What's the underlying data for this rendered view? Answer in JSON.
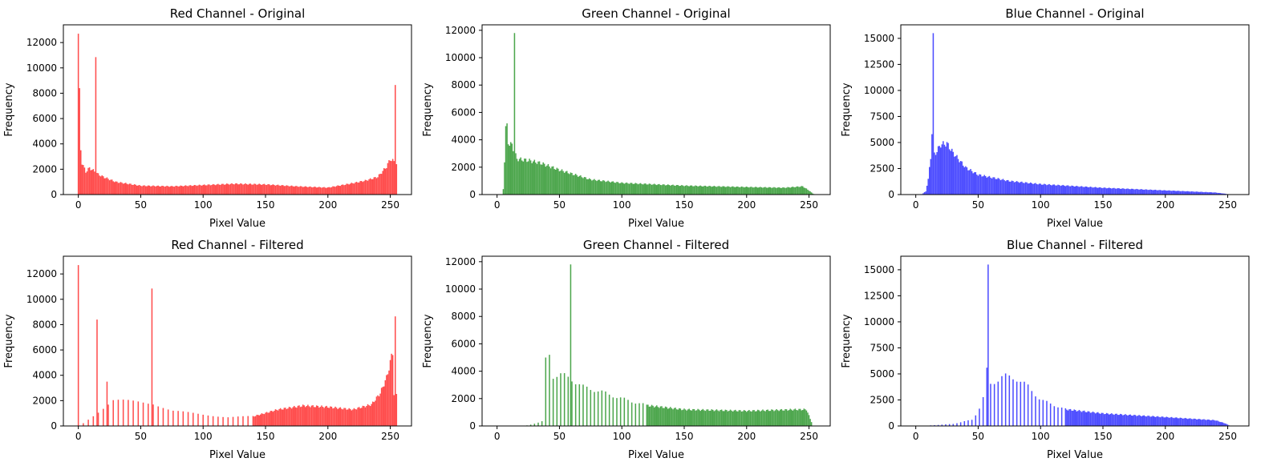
{
  "chart_data": [
    {
      "type": "bar",
      "title": "Red Channel - Original",
      "xlabel": "Pixel Value",
      "ylabel": "Frequency",
      "color": "#ff0000",
      "xlim": [
        -12,
        267
      ],
      "ylim": [
        0,
        13400
      ],
      "xticks": [
        0,
        50,
        100,
        150,
        200,
        250
      ],
      "yticks": [
        0,
        2000,
        4000,
        6000,
        8000,
        10000,
        12000
      ],
      "spikes": [
        [
          0,
          12700
        ],
        [
          1,
          8400
        ],
        [
          2,
          3500
        ],
        [
          14,
          10850
        ],
        [
          254,
          8650
        ],
        [
          255,
          2400
        ]
      ],
      "profile": [
        [
          0,
          2000
        ],
        [
          3,
          2500
        ],
        [
          6,
          1800
        ],
        [
          9,
          2100
        ],
        [
          12,
          1900
        ],
        [
          16,
          1600
        ],
        [
          20,
          1400
        ],
        [
          30,
          1000
        ],
        [
          50,
          700
        ],
        [
          75,
          650
        ],
        [
          100,
          750
        ],
        [
          125,
          850
        ],
        [
          150,
          800
        ],
        [
          175,
          650
        ],
        [
          200,
          550
        ],
        [
          220,
          900
        ],
        [
          230,
          1100
        ],
        [
          240,
          1400
        ],
        [
          247,
          2200
        ],
        [
          250,
          2800
        ],
        [
          253,
          2600
        ]
      ]
    },
    {
      "type": "bar",
      "title": "Green Channel - Original",
      "xlabel": "Pixel Value",
      "ylabel": "Frequency",
      "color": "#008000",
      "xlim": [
        -12,
        267
      ],
      "ylim": [
        0,
        12400
      ],
      "xticks": [
        0,
        50,
        100,
        150,
        200,
        250
      ],
      "yticks": [
        0,
        2000,
        4000,
        6000,
        8000,
        10000,
        12000
      ],
      "spikes": [
        [
          7,
          5000
        ],
        [
          8,
          5200
        ],
        [
          14,
          11800
        ]
      ],
      "profile": [
        [
          0,
          0
        ],
        [
          4,
          0
        ],
        [
          5,
          400
        ],
        [
          6,
          2500
        ],
        [
          7,
          4800
        ],
        [
          9,
          3800
        ],
        [
          12,
          3600
        ],
        [
          16,
          2600
        ],
        [
          25,
          2500
        ],
        [
          35,
          2300
        ],
        [
          50,
          1800
        ],
        [
          75,
          1100
        ],
        [
          100,
          850
        ],
        [
          150,
          650
        ],
        [
          200,
          550
        ],
        [
          230,
          500
        ],
        [
          245,
          600
        ],
        [
          250,
          300
        ],
        [
          253,
          80
        ],
        [
          255,
          0
        ]
      ]
    },
    {
      "type": "bar",
      "title": "Blue Channel - Original",
      "xlabel": "Pixel Value",
      "ylabel": "Frequency",
      "color": "#0000ff",
      "xlim": [
        -12,
        267
      ],
      "ylim": [
        0,
        16300
      ],
      "xticks": [
        0,
        50,
        100,
        150,
        200,
        250
      ],
      "yticks": [
        0,
        2500,
        5000,
        7500,
        10000,
        12500,
        15000
      ],
      "spikes": [
        [
          14,
          15500
        ],
        [
          13,
          5800
        ]
      ],
      "profile": [
        [
          0,
          0
        ],
        [
          5,
          50
        ],
        [
          8,
          300
        ],
        [
          10,
          1500
        ],
        [
          12,
          3500
        ],
        [
          16,
          4000
        ],
        [
          20,
          4800
        ],
        [
          25,
          4900
        ],
        [
          30,
          4000
        ],
        [
          40,
          2600
        ],
        [
          50,
          1900
        ],
        [
          75,
          1300
        ],
        [
          100,
          1000
        ],
        [
          150,
          650
        ],
        [
          200,
          400
        ],
        [
          240,
          200
        ],
        [
          248,
          80
        ],
        [
          252,
          0
        ],
        [
          255,
          0
        ]
      ]
    },
    {
      "type": "bar",
      "title": "Red Channel - Filtered",
      "xlabel": "Pixel Value",
      "ylabel": "Frequency",
      "color": "#ff0000",
      "xlim": [
        -12,
        267
      ],
      "ylim": [
        0,
        13400
      ],
      "xticks": [
        0,
        50,
        100,
        150,
        200,
        250
      ],
      "yticks": [
        0,
        2000,
        4000,
        6000,
        8000,
        10000,
        12000
      ],
      "sparse_below": 140,
      "sparse_step": 4,
      "spikes": [
        [
          0,
          12700
        ],
        [
          15,
          8400
        ],
        [
          23,
          3500
        ],
        [
          59,
          10850
        ],
        [
          254,
          8650
        ],
        [
          252,
          5600
        ],
        [
          251,
          5700
        ]
      ],
      "profile": [
        [
          0,
          0
        ],
        [
          1,
          0
        ],
        [
          28,
          2000
        ],
        [
          50,
          1900
        ],
        [
          60,
          1800
        ],
        [
          75,
          1200
        ],
        [
          100,
          900
        ],
        [
          120,
          700
        ],
        [
          140,
          750
        ],
        [
          160,
          1300
        ],
        [
          180,
          1600
        ],
        [
          200,
          1500
        ],
        [
          220,
          1300
        ],
        [
          235,
          1700
        ],
        [
          242,
          2600
        ],
        [
          247,
          3800
        ],
        [
          250,
          5000
        ],
        [
          253,
          2500
        ]
      ]
    },
    {
      "type": "bar",
      "title": "Green Channel - Filtered",
      "xlabel": "Pixel Value",
      "ylabel": "Frequency",
      "color": "#008000",
      "xlim": [
        -12,
        267
      ],
      "ylim": [
        0,
        12400
      ],
      "xticks": [
        0,
        50,
        100,
        150,
        200,
        250
      ],
      "yticks": [
        0,
        2000,
        4000,
        6000,
        8000,
        10000,
        12000
      ],
      "sparse_below": 120,
      "sparse_step": 3,
      "spikes": [
        [
          39,
          5000
        ],
        [
          42,
          5200
        ],
        [
          59,
          11800
        ]
      ],
      "profile": [
        [
          0,
          0
        ],
        [
          20,
          0
        ],
        [
          25,
          50
        ],
        [
          35,
          300
        ],
        [
          38,
          400
        ],
        [
          40,
          3500
        ],
        [
          50,
          3800
        ],
        [
          60,
          3400
        ],
        [
          70,
          2800
        ],
        [
          80,
          2600
        ],
        [
          100,
          2000
        ],
        [
          120,
          1500
        ],
        [
          150,
          1200
        ],
        [
          200,
          1100
        ],
        [
          240,
          1200
        ],
        [
          248,
          1200
        ],
        [
          252,
          300
        ],
        [
          253,
          0
        ]
      ]
    },
    {
      "type": "bar",
      "title": "Blue Channel - Filtered",
      "xlabel": "Pixel Value",
      "ylabel": "Frequency",
      "color": "#0000ff",
      "xlim": [
        -12,
        267
      ],
      "ylim": [
        0,
        16300
      ],
      "xticks": [
        0,
        50,
        100,
        150,
        200,
        250
      ],
      "yticks": [
        0,
        2500,
        5000,
        7500,
        10000,
        12500,
        15000
      ],
      "sparse_below": 120,
      "sparse_step": 3,
      "spikes": [
        [
          58,
          15500
        ],
        [
          57,
          5600
        ]
      ],
      "profile": [
        [
          0,
          0
        ],
        [
          10,
          40
        ],
        [
          30,
          200
        ],
        [
          45,
          600
        ],
        [
          50,
          1400
        ],
        [
          55,
          3000
        ],
        [
          60,
          4000
        ],
        [
          70,
          4800
        ],
        [
          80,
          4600
        ],
        [
          90,
          3800
        ],
        [
          100,
          2500
        ],
        [
          120,
          1600
        ],
        [
          150,
          1200
        ],
        [
          200,
          850
        ],
        [
          240,
          550
        ],
        [
          248,
          250
        ],
        [
          252,
          0
        ],
        [
          255,
          0
        ]
      ]
    }
  ]
}
